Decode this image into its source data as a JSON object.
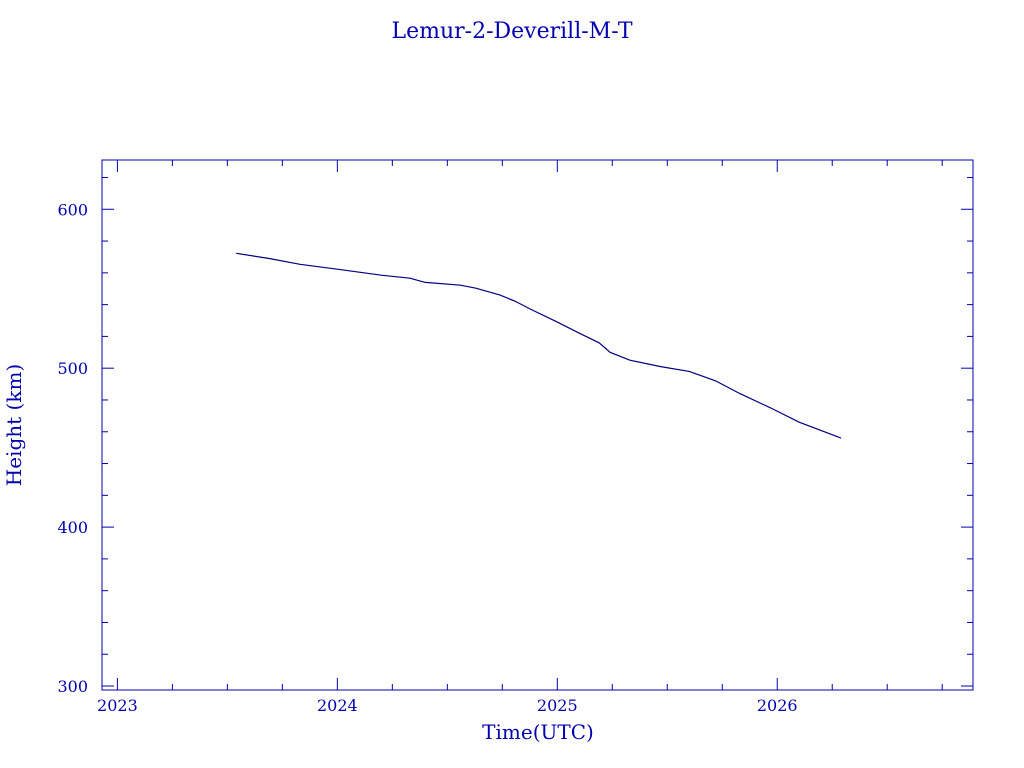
{
  "chart_data": {
    "type": "line",
    "title": "Lemur-2-Deverill-M-T",
    "xlabel": "Time(UTC)",
    "ylabel": "Height (km)",
    "xlim": [
      2022.93,
      2026.89
    ],
    "ylim": [
      297.5,
      631
    ],
    "xticks": [
      2023,
      2024,
      2025,
      2026
    ],
    "yticks": [
      300,
      400,
      500,
      600
    ],
    "grid": false,
    "color": "#000080",
    "axis_color": "#0000b0",
    "series": [
      {
        "name": "Height",
        "x": [
          2023.54,
          2023.69,
          2023.83,
          2024.0,
          2024.2,
          2024.33,
          2024.4,
          2024.56,
          2024.63,
          2024.74,
          2024.81,
          2024.88,
          2025.0,
          2025.1,
          2025.19,
          2025.24,
          2025.33,
          2025.47,
          2025.6,
          2025.72,
          2025.83,
          2025.97,
          2026.1,
          2026.29
        ],
        "y": [
          572.3,
          569,
          565.4,
          562.3,
          558.5,
          556.6,
          554,
          552.2,
          550.3,
          546,
          542,
          537,
          529,
          522,
          516,
          510,
          505,
          501,
          498,
          492,
          484,
          475,
          466,
          456
        ]
      }
    ]
  }
}
